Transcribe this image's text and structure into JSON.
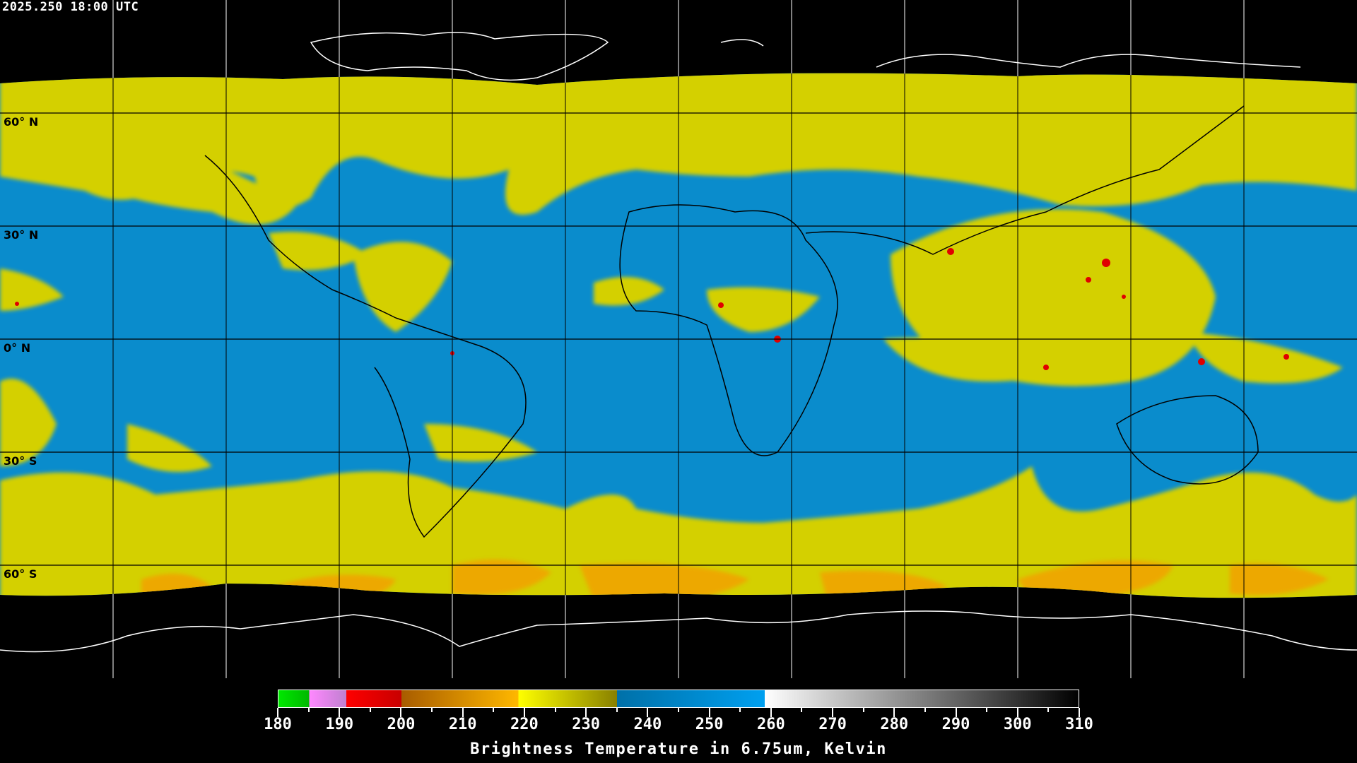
{
  "header": {
    "timestamp": "2025.250 18:00 UTC"
  },
  "map": {
    "projection": "equirectangular",
    "grid_spacing_deg": 30,
    "lat_labels": [
      "60° N",
      "30° N",
      "0° N",
      "30° S",
      "60° S"
    ],
    "colors": {
      "background": "#000000",
      "coastline_outside": "#ffffff",
      "coastline_inside": "#000000",
      "grid": "#000000",
      "moist": "#0a8ccc",
      "dry": "#d4d000",
      "dry_strong": "#f0a400",
      "convective": "#e00000"
    }
  },
  "colorbar": {
    "min": 180,
    "max": 310,
    "ticks": [
      180,
      190,
      200,
      210,
      220,
      230,
      240,
      250,
      260,
      270,
      280,
      290,
      300,
      310
    ],
    "segments": [
      {
        "from": 180,
        "to": 185,
        "colors": [
          "#00e800",
          "#00b800"
        ]
      },
      {
        "from": 185,
        "to": 191,
        "colors": [
          "#ff88ff",
          "#c080d0"
        ]
      },
      {
        "from": 191,
        "to": 200,
        "colors": [
          "#ff0000",
          "#c80000"
        ]
      },
      {
        "from": 200,
        "to": 219,
        "colors": [
          "#a85c00",
          "#ffb800"
        ]
      },
      {
        "from": 219,
        "to": 235,
        "colors": [
          "#ffff00",
          "#888000"
        ]
      },
      {
        "from": 235,
        "to": 259,
        "colors": [
          "#0070a8",
          "#00a0f0"
        ]
      },
      {
        "from": 259,
        "to": 310,
        "colors": [
          "#ffffff",
          "#000000"
        ]
      }
    ],
    "caption": "Brightness Temperature in 6.75um, Kelvin"
  }
}
